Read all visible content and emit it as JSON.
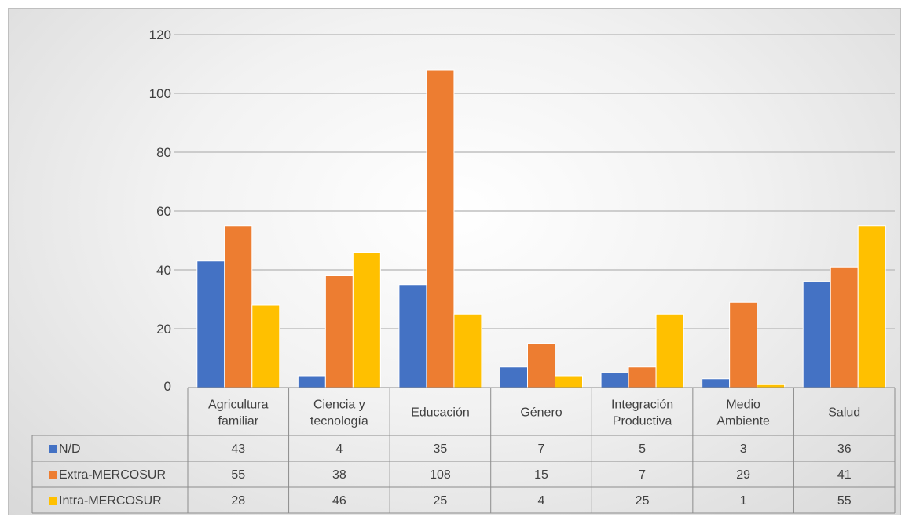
{
  "chart_data": {
    "type": "bar",
    "categories": [
      [
        "Agricultura",
        "familiar"
      ],
      [
        "Ciencia y",
        "tecnología"
      ],
      [
        "Educación"
      ],
      [
        "Género"
      ],
      [
        "Integración",
        "Productiva"
      ],
      [
        "Medio",
        "Ambiente"
      ],
      [
        "Salud"
      ]
    ],
    "series": [
      {
        "name": "N/D",
        "color": "#4472c4",
        "values": [
          43,
          4,
          35,
          7,
          5,
          3,
          36
        ]
      },
      {
        "name": "Extra-MERCOSUR",
        "color": "#ed7d31",
        "values": [
          55,
          38,
          108,
          15,
          7,
          29,
          41
        ]
      },
      {
        "name": "Intra-MERCOSUR",
        "color": "#ffc000",
        "values": [
          28,
          46,
          25,
          4,
          25,
          1,
          55
        ]
      }
    ],
    "ylim": [
      0,
      120
    ],
    "yticks": [
      0,
      20,
      40,
      60,
      80,
      100,
      120
    ],
    "grid": true,
    "data_table": true
  }
}
